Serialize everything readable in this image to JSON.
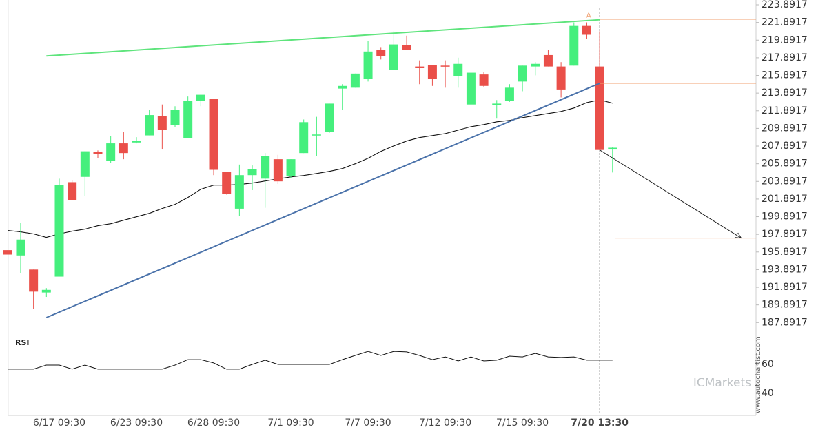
{
  "chart_data": {
    "type": "candlestick",
    "up_color": "#45ef7d",
    "down_color": "#ea4f49",
    "categories": [
      null,
      null,
      null,
      null,
      "6/17 09:30",
      null,
      null,
      null,
      null,
      null,
      "6/23 09:30",
      null,
      null,
      null,
      null,
      null,
      "6/28 09:30",
      null,
      null,
      null,
      null,
      null,
      "7/1 09:30",
      null,
      null,
      null,
      null,
      null,
      "7/7 09:30",
      null,
      null,
      null,
      null,
      null,
      "7/12 09:30",
      null,
      null,
      null,
      null,
      null,
      "7/15 09:30",
      null,
      null,
      null,
      null,
      null,
      "7/20 13:30",
      null
    ],
    "open": [
      196.1,
      195.5,
      193.9,
      191.3,
      193.1,
      203.8,
      204.4,
      207.2,
      206.2,
      208.2,
      208.3,
      209.1,
      211.3,
      210.3,
      208.8,
      213.0,
      213.2,
      205.0,
      200.8,
      204.6,
      204.2,
      206.4,
      204.5,
      207.1,
      209.1,
      209.5,
      214.4,
      214.5,
      215.5,
      218.75,
      216.5,
      219.3,
      216.9,
      217.1,
      217.0,
      215.8,
      212.6,
      216.0,
      212.5,
      213.0,
      215.2,
      216.9,
      218.2,
      216.9,
      217.0,
      221.5,
      216.9,
      207.5
    ],
    "high": [
      196.1,
      199.2,
      193.9,
      191.8,
      204.2,
      204.0,
      207.3,
      207.4,
      209.0,
      209.5,
      208.9,
      212.0,
      212.6,
      212.4,
      213.5,
      213.7,
      213.2,
      205.0,
      205.8,
      205.7,
      207.1,
      206.9,
      206.4,
      210.9,
      211.2,
      212.7,
      214.9,
      216.1,
      219.8,
      219.1,
      220.9,
      220.4,
      217.6,
      217.1,
      217.6,
      217.9,
      216.2,
      216.3,
      213.1,
      214.9,
      217.0,
      217.4,
      218.75,
      217.4,
      221.9,
      221.9,
      220.9,
      207.8
    ],
    "low": [
      195.6,
      193.5,
      189.4,
      190.8,
      193.1,
      201.8,
      202.2,
      206.5,
      206.0,
      206.4,
      208.2,
      209.1,
      207.5,
      210.0,
      208.8,
      212.4,
      204.6,
      202.4,
      200.0,
      202.9,
      200.9,
      203.6,
      204.3,
      207.1,
      206.8,
      209.4,
      212.0,
      214.5,
      215.2,
      217.7,
      216.5,
      218.8,
      214.9,
      214.7,
      214.5,
      214.5,
      212.6,
      214.6,
      211.0,
      212.9,
      214.1,
      215.9,
      216.9,
      213.4,
      217.0,
      220.0,
      207.45,
      204.9
    ],
    "close": [
      195.6,
      197.3,
      191.4,
      191.6,
      203.5,
      201.8,
      207.3,
      207.0,
      208.2,
      207.1,
      208.5,
      211.4,
      209.7,
      212.0,
      212.98,
      213.7,
      205.2,
      202.5,
      204.6,
      205.3,
      206.8,
      203.9,
      206.4,
      210.6,
      209.2,
      212.7,
      214.7,
      216.1,
      218.6,
      218.1,
      219.4,
      218.8,
      216.8,
      215.5,
      216.9,
      217.2,
      216.2,
      214.7,
      212.7,
      214.5,
      217.0,
      217.2,
      216.9,
      214.3,
      221.5,
      220.5,
      207.45,
      207.7
    ],
    "moving_average": {
      "color": "#111111",
      "values": [
        198.33,
        198.17,
        197.94,
        197.55,
        197.94,
        198.25,
        198.48,
        198.87,
        199.1,
        199.49,
        199.88,
        200.27,
        200.82,
        201.29,
        202.07,
        203.0,
        203.47,
        203.47,
        203.55,
        203.7,
        203.94,
        204.17,
        204.4,
        204.56,
        204.79,
        205.03,
        205.34,
        205.89,
        206.51,
        207.29,
        207.91,
        208.46,
        208.85,
        209.08,
        209.31,
        209.7,
        210.09,
        210.33,
        210.64,
        210.8,
        211.11,
        211.34,
        211.58,
        211.81,
        212.2,
        212.82,
        213.13,
        212.75
      ]
    },
    "trendlines": [
      {
        "color": "#5ee47c",
        "x": [
          3,
          46
        ],
        "values": [
          218.1,
          222.2
        ]
      },
      {
        "color": "#4a72aa",
        "x": [
          3,
          46
        ],
        "values": [
          188.46,
          215.0
        ]
      }
    ],
    "levels": [
      {
        "color": "#f0a070",
        "from": 46,
        "value": 222.25
      },
      {
        "color": "#f0a070",
        "from": 46,
        "value": 215.0
      },
      {
        "color": "#f0a070",
        "from": 47,
        "value": 197.47
      }
    ],
    "forecast": {
      "color": "#222222",
      "x": [
        46,
        57
      ],
      "values": [
        207.45,
        197.47
      ]
    },
    "annotation": "A",
    "ylim": [
      186.9,
      224.4
    ],
    "yticks": [
      223.8917,
      221.8917,
      219.8917,
      217.8917,
      215.8917,
      213.8917,
      211.8917,
      209.8917,
      207.8917,
      205.8917,
      203.8917,
      201.8917,
      199.8917,
      197.8917,
      195.8917,
      193.8917,
      191.8917,
      189.8917,
      187.8917
    ],
    "rsi": {
      "label": "RSI",
      "color": "#111111",
      "ylim": [
        25,
        80
      ],
      "yticks": [
        40,
        60
      ],
      "values": [
        56.7,
        56.7,
        56.7,
        59.5,
        59.5,
        56.7,
        59.5,
        56.7,
        56.7,
        56.7,
        56.7,
        56.7,
        56.7,
        59.5,
        63.3,
        63.3,
        61.0,
        56.7,
        56.7,
        60,
        62.9,
        60,
        60,
        60,
        60,
        60,
        63.3,
        66.2,
        69.0,
        66.2,
        69.0,
        68.6,
        66.2,
        63.3,
        65.2,
        62.4,
        65.2,
        62.4,
        62.9,
        65.7,
        65.2,
        67.6,
        65.2,
        64.8,
        65.2,
        62.9,
        62.9,
        62.9
      ]
    },
    "watermarks": [
      "ICMarkets",
      "www.autochartist.com"
    ]
  }
}
